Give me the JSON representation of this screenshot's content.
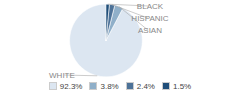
{
  "chart_data": {
    "type": "pie",
    "categories": [
      "WHITE",
      "ASIAN",
      "HISPANIC",
      "BLACK"
    ],
    "values": [
      92.3,
      3.8,
      2.4,
      1.5
    ],
    "value_labels": [
      "92.3%",
      "3.8%",
      "2.4%",
      "1.5%"
    ],
    "colors": [
      "#dce6f1",
      "#8fafc9",
      "#4d7298",
      "#1f4e79"
    ],
    "legend": "bottom"
  }
}
